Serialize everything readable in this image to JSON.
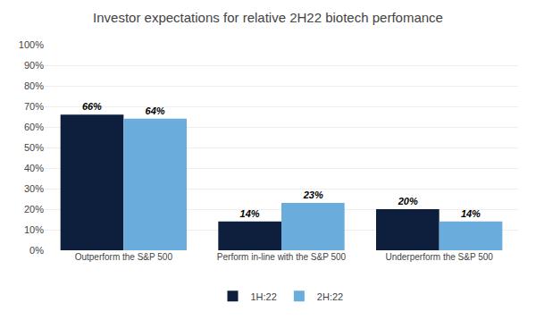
{
  "chart_data": {
    "type": "bar",
    "title": "Investor expectations for relative 2H22 biotech perfomance",
    "categories": [
      "Outperform the S&P 500",
      "Perform in-line with the S&P 500",
      "Underperform the S&P 500"
    ],
    "series": [
      {
        "name": "1H:22",
        "color": "#0d1f3c",
        "values": [
          66,
          14,
          20
        ],
        "value_labels": [
          "66%",
          "14%",
          "20%"
        ]
      },
      {
        "name": "2H:22",
        "color": "#6aaddc",
        "values": [
          64,
          23,
          14
        ],
        "value_labels": [
          "64%",
          "23%",
          "14%"
        ]
      }
    ],
    "ylim": [
      0,
      100
    ],
    "yticks": [
      {
        "value": 0,
        "label": "0%"
      },
      {
        "value": 10,
        "label": "10%"
      },
      {
        "value": 20,
        "label": "20%"
      },
      {
        "value": 30,
        "label": "30%"
      },
      {
        "value": 40,
        "label": "40%"
      },
      {
        "value": 50,
        "label": "50%"
      },
      {
        "value": 60,
        "label": "60%"
      },
      {
        "value": 70,
        "label": "70%"
      },
      {
        "value": 80,
        "label": "80%"
      },
      {
        "value": 90,
        "label": "90%"
      },
      {
        "value": 100,
        "label": "100%"
      }
    ],
    "grid": true,
    "legend": "bottom",
    "data_labels": true
  }
}
